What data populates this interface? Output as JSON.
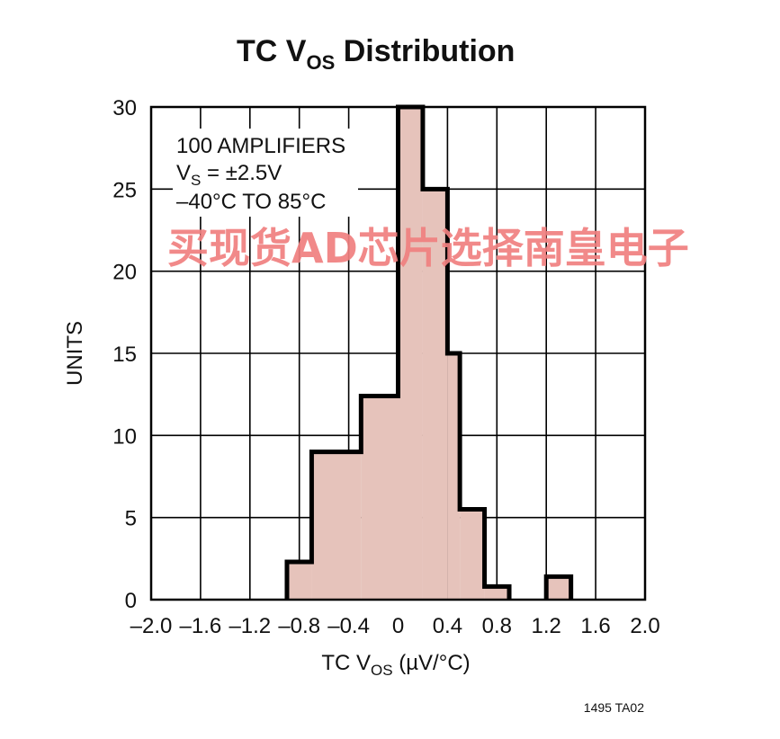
{
  "chart_data": {
    "type": "bar",
    "subtype": "histogram",
    "title": "TC V",
    "title_subscript": "OS",
    "title_suffix": " Distribution",
    "xlabel": "TC V",
    "xlabel_subscript": "OS",
    "xlabel_suffix": " (µV/°C)",
    "ylabel": "UNITS",
    "xlim": [
      -2.0,
      2.0
    ],
    "ylim": [
      0,
      30
    ],
    "x_ticks": [
      -2.0,
      -1.6,
      -1.2,
      -0.8,
      -0.4,
      0,
      0.4,
      0.8,
      1.2,
      1.6,
      2.0
    ],
    "x_tick_labels": [
      "–2.0",
      "–1.6",
      "–1.2",
      "–0.8",
      "–0.4",
      "0",
      "0.4",
      "0.8",
      "1.2",
      "1.6",
      "2.0"
    ],
    "y_ticks": [
      0,
      5,
      10,
      15,
      20,
      25,
      30
    ],
    "y_tick_labels": [
      "0",
      "5",
      "10",
      "15",
      "20",
      "25",
      "30"
    ],
    "grid": true,
    "bins": [
      {
        "x0": -0.9,
        "x1": -0.7,
        "value": 2.3
      },
      {
        "x0": -0.7,
        "x1": -0.3,
        "value": 9
      },
      {
        "x0": -0.3,
        "x1": 0.0,
        "value": 12.4
      },
      {
        "x0": 0.0,
        "x1": 0.2,
        "value": 30
      },
      {
        "x0": 0.2,
        "x1": 0.4,
        "value": 25
      },
      {
        "x0": 0.4,
        "x1": 0.5,
        "value": 15
      },
      {
        "x0": 0.5,
        "x1": 0.7,
        "value": 5.5
      },
      {
        "x0": 0.7,
        "x1": 0.9,
        "value": 0.8
      },
      {
        "x0": 1.2,
        "x1": 1.4,
        "value": 1.4
      }
    ],
    "annotation_lines": [
      {
        "text": "100 AMPLIFIERS"
      },
      {
        "text": "V",
        "sub": "S",
        "suffix": " = ±2.5V"
      },
      {
        "text": "–40°C TO 85°C"
      }
    ],
    "fill_color": "#e6c3bb",
    "outline_color": "#000000"
  },
  "watermark": "买现货AD芯片选择南皇电子",
  "figure_id": "1495 TA02"
}
